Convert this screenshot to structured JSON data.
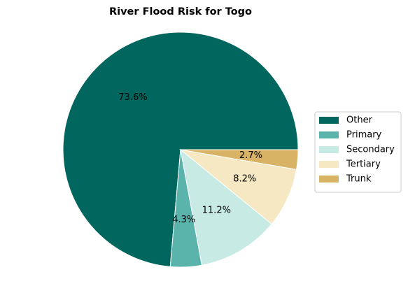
{
  "chart_data": {
    "type": "pie",
    "title": "River Flood Risk for Togo",
    "categories": [
      "Other",
      "Primary",
      "Secondary",
      "Tertiary",
      "Trunk"
    ],
    "values": [
      73.6,
      4.3,
      11.2,
      8.2,
      2.7
    ],
    "value_labels": [
      "73.6%",
      "4.3%",
      "11.2%",
      "8.2%",
      "2.7%"
    ],
    "colors": [
      "#01665e",
      "#5ab4ac",
      "#c7eae5",
      "#f6e8c3",
      "#d8b365"
    ],
    "legend": "right"
  }
}
